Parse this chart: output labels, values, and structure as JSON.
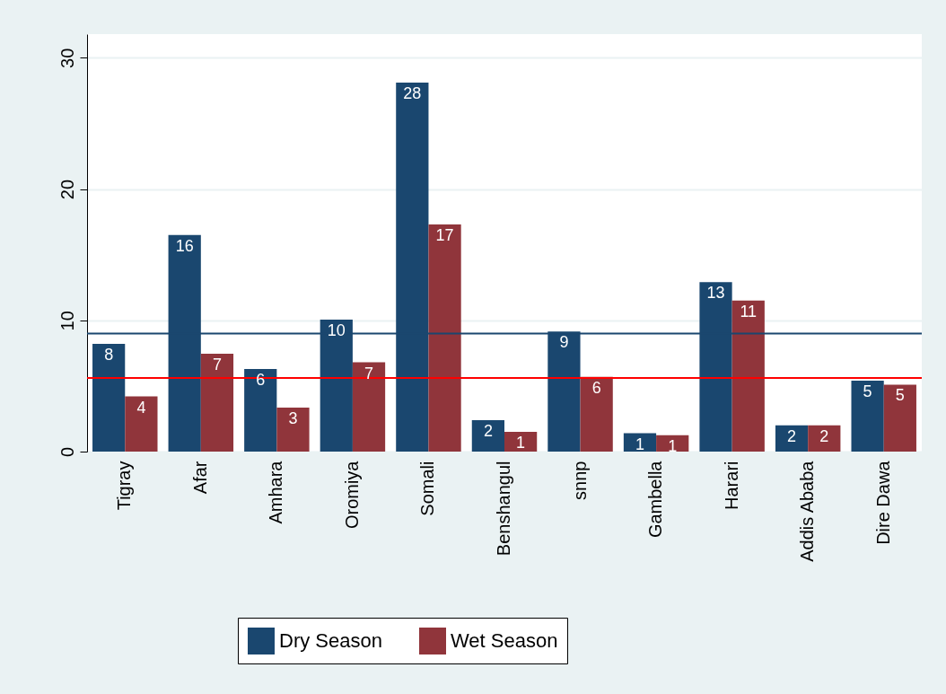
{
  "chart_data": {
    "type": "bar",
    "categories": [
      "Tigray",
      "Afar",
      "Amhara",
      "Oromiya",
      "Somali",
      "Benshangul",
      "snnp",
      "Gambella",
      "Harari",
      "Addis Ababa",
      "Dire Dawa"
    ],
    "series": [
      {
        "name": "Dry Season",
        "color": "#1a476f",
        "values": [
          8.2,
          16.5,
          6.3,
          10.05,
          28.1,
          2.4,
          9.15,
          1.4,
          12.9,
          2.0,
          5.4
        ],
        "value_labels": [
          "8",
          "16",
          "6",
          "10",
          "28",
          "2",
          "9",
          "1",
          "13",
          "2",
          "5"
        ]
      },
      {
        "name": "Wet Season",
        "color": "#90353b",
        "values": [
          4.2,
          7.45,
          3.35,
          6.8,
          17.3,
          1.5,
          5.7,
          1.25,
          11.5,
          2.0,
          5.1
        ],
        "value_labels": [
          "4",
          "7",
          "3",
          "7",
          "17",
          "1",
          "6",
          "1",
          "11",
          "2",
          "5"
        ]
      }
    ],
    "ylim": [
      0,
      31.8
    ],
    "yticks": [
      0,
      10,
      20,
      30
    ],
    "grid": "y",
    "legend": "bottom",
    "ref_lines": [
      {
        "axis": "y",
        "value": 9.0,
        "color": "#1a476f"
      },
      {
        "axis": "y",
        "value": 5.6,
        "color": "#ff0000"
      }
    ]
  }
}
